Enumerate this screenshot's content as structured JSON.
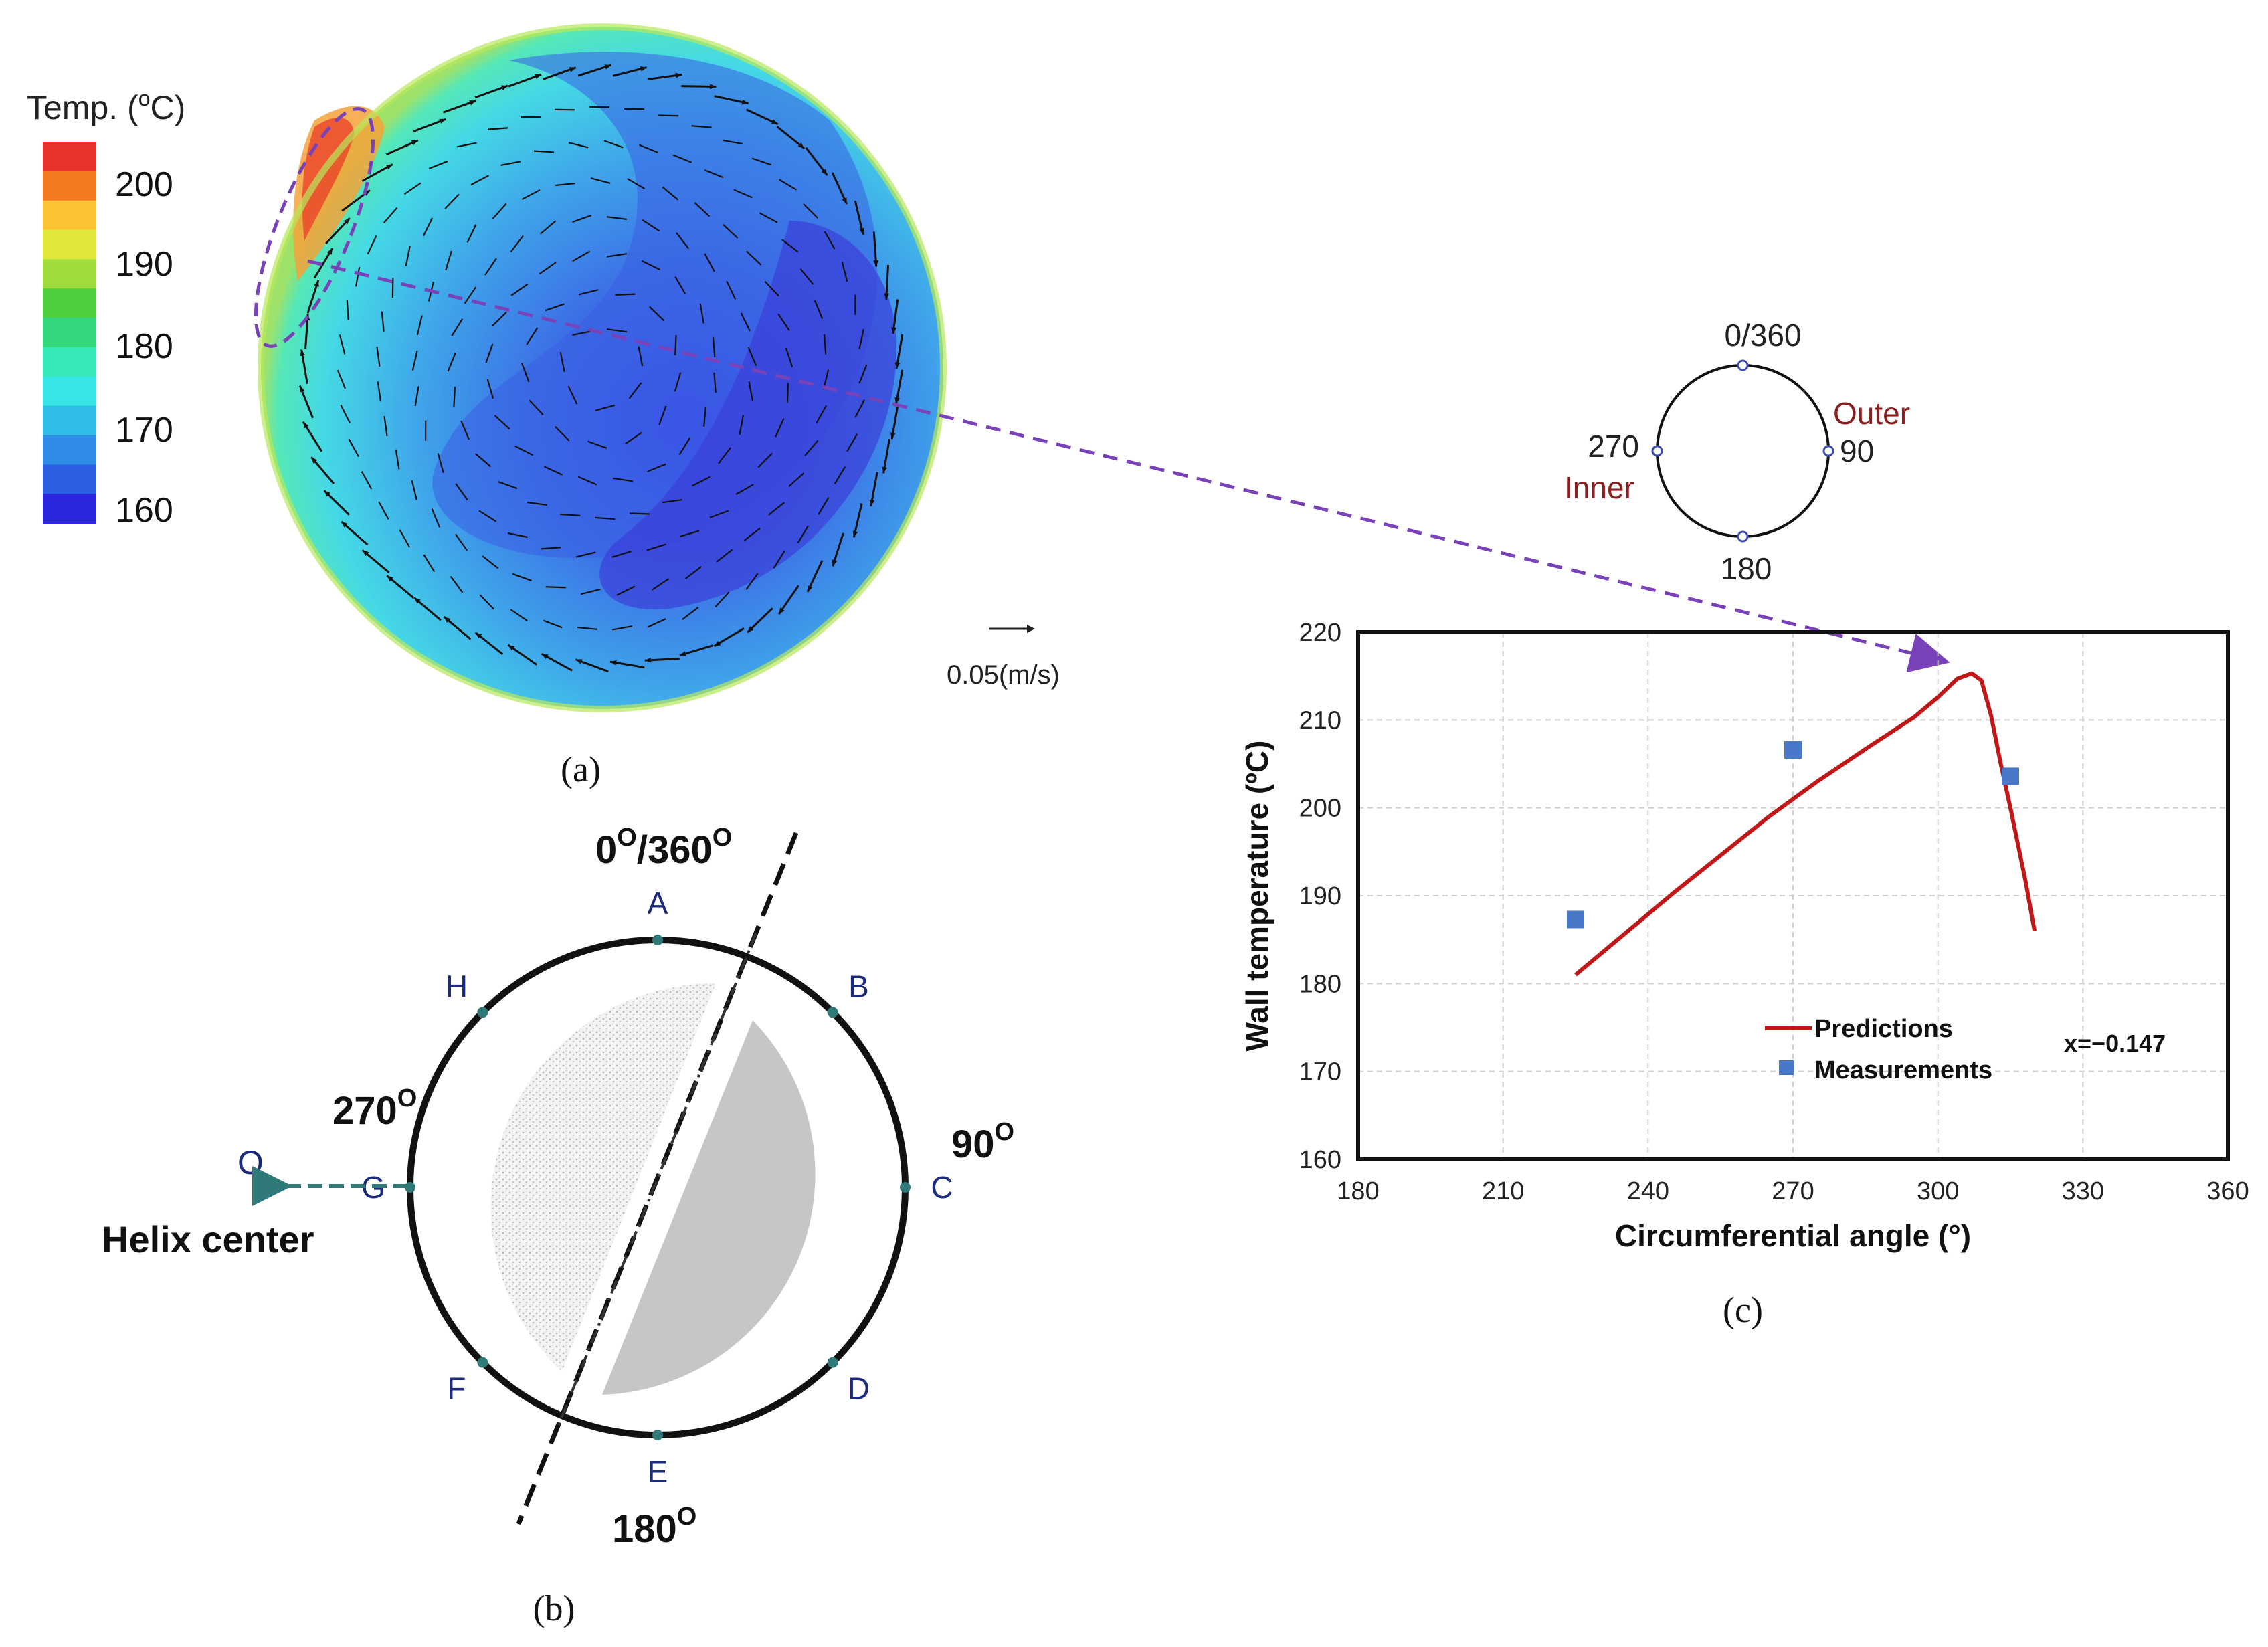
{
  "panel_a": {
    "legend_title": "Temp. (",
    "legend_title_sup": "o",
    "legend_title_end": "C)",
    "legend_ticks": [
      "200",
      "190",
      "180",
      "170",
      "160"
    ],
    "legend_colors": [
      "#e8332d",
      "#f47a22",
      "#fbc335",
      "#e0e93a",
      "#9fdd3c",
      "#4ccf3e",
      "#32d67c",
      "#36e8b9",
      "#36e6e6",
      "#30bde6",
      "#2f8ce7",
      "#2d5fe3",
      "#2b25dd"
    ],
    "velocity_ref_label": "0.05(m/s)",
    "caption": "(a)"
  },
  "small_circle": {
    "top_label": "0/360",
    "right_label": "90",
    "bottom_label": "180",
    "left_label": "270",
    "outer_label": "Outer",
    "inner_label": "Inner"
  },
  "panel_b": {
    "angle_top": "0",
    "angle_top_sup": "O",
    "angle_top_sep": "/360",
    "angle_top_sup2": "O",
    "angle_right": "90",
    "angle_right_sup": "O",
    "angle_bottom": "180",
    "angle_bottom_sup": "O",
    "angle_left": "270",
    "angle_left_sup": "O",
    "points": [
      "A",
      "B",
      "C",
      "D",
      "E",
      "F",
      "G",
      "H"
    ],
    "origin_label": "O",
    "helix_label": "Helix center",
    "caption": "(b)"
  },
  "chart_data": {
    "type": "line",
    "title": "",
    "xlabel": "Circumferential angle (°)",
    "ylabel": "Wall temperature (ºC)",
    "xlim": [
      180,
      360
    ],
    "ylim": [
      160,
      220
    ],
    "xticks": [
      180,
      210,
      240,
      270,
      300,
      330,
      360
    ],
    "yticks": [
      160,
      170,
      180,
      190,
      200,
      210,
      220
    ],
    "grid": true,
    "legend_position": "bottom-center",
    "series": [
      {
        "name": "Predictions",
        "kind": "line",
        "color": "#c01818",
        "x": [
          225,
          235,
          245,
          255,
          265,
          275,
          285,
          295,
          300,
          304,
          307,
          309,
          311,
          313,
          315,
          318,
          320
        ],
        "y": [
          181.0,
          185.6,
          190.2,
          194.6,
          199.0,
          203.0,
          206.7,
          210.3,
          212.6,
          214.7,
          215.3,
          214.5,
          210.5,
          205.0,
          200.0,
          192.0,
          186.0
        ]
      },
      {
        "name": "Measurements",
        "kind": "scatter",
        "color": "#4a78c9",
        "x": [
          225,
          270,
          315
        ],
        "y": [
          187.3,
          206.6,
          203.6
        ]
      }
    ],
    "annotation": "x=−0.147",
    "caption": "(c)"
  }
}
